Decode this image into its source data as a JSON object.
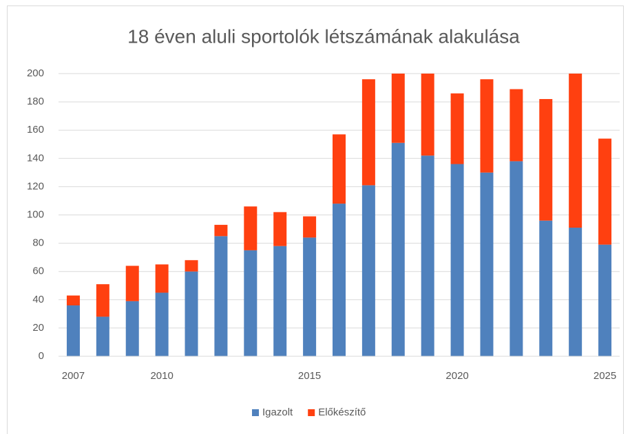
{
  "chart_data": {
    "type": "stacked_bar",
    "title": "18 éven aluli sportolók létszámának alakulása",
    "categories": [
      "2007",
      null,
      null,
      "2010",
      null,
      null,
      null,
      null,
      "2015",
      null,
      null,
      null,
      null,
      "2020",
      null,
      null,
      null,
      null,
      "2025"
    ],
    "series": [
      {
        "name": "Igazolt",
        "color": "#4f81bd",
        "values": [
          36,
          28,
          39,
          45,
          60,
          85,
          75,
          78,
          84,
          108,
          121,
          151,
          142,
          136,
          130,
          138,
          96,
          91,
          79
        ]
      },
      {
        "name": "Előkészítő",
        "color": "#ff4010",
        "values": [
          7,
          23,
          25,
          20,
          8,
          8,
          31,
          24,
          15,
          49,
          75,
          49,
          58,
          50,
          66,
          51,
          86,
          109,
          75
        ]
      }
    ],
    "ylim": [
      0,
      200
    ],
    "yticks": [
      0,
      20,
      40,
      60,
      80,
      100,
      120,
      140,
      160,
      180,
      200
    ],
    "grid": true,
    "legend": "bottom"
  }
}
